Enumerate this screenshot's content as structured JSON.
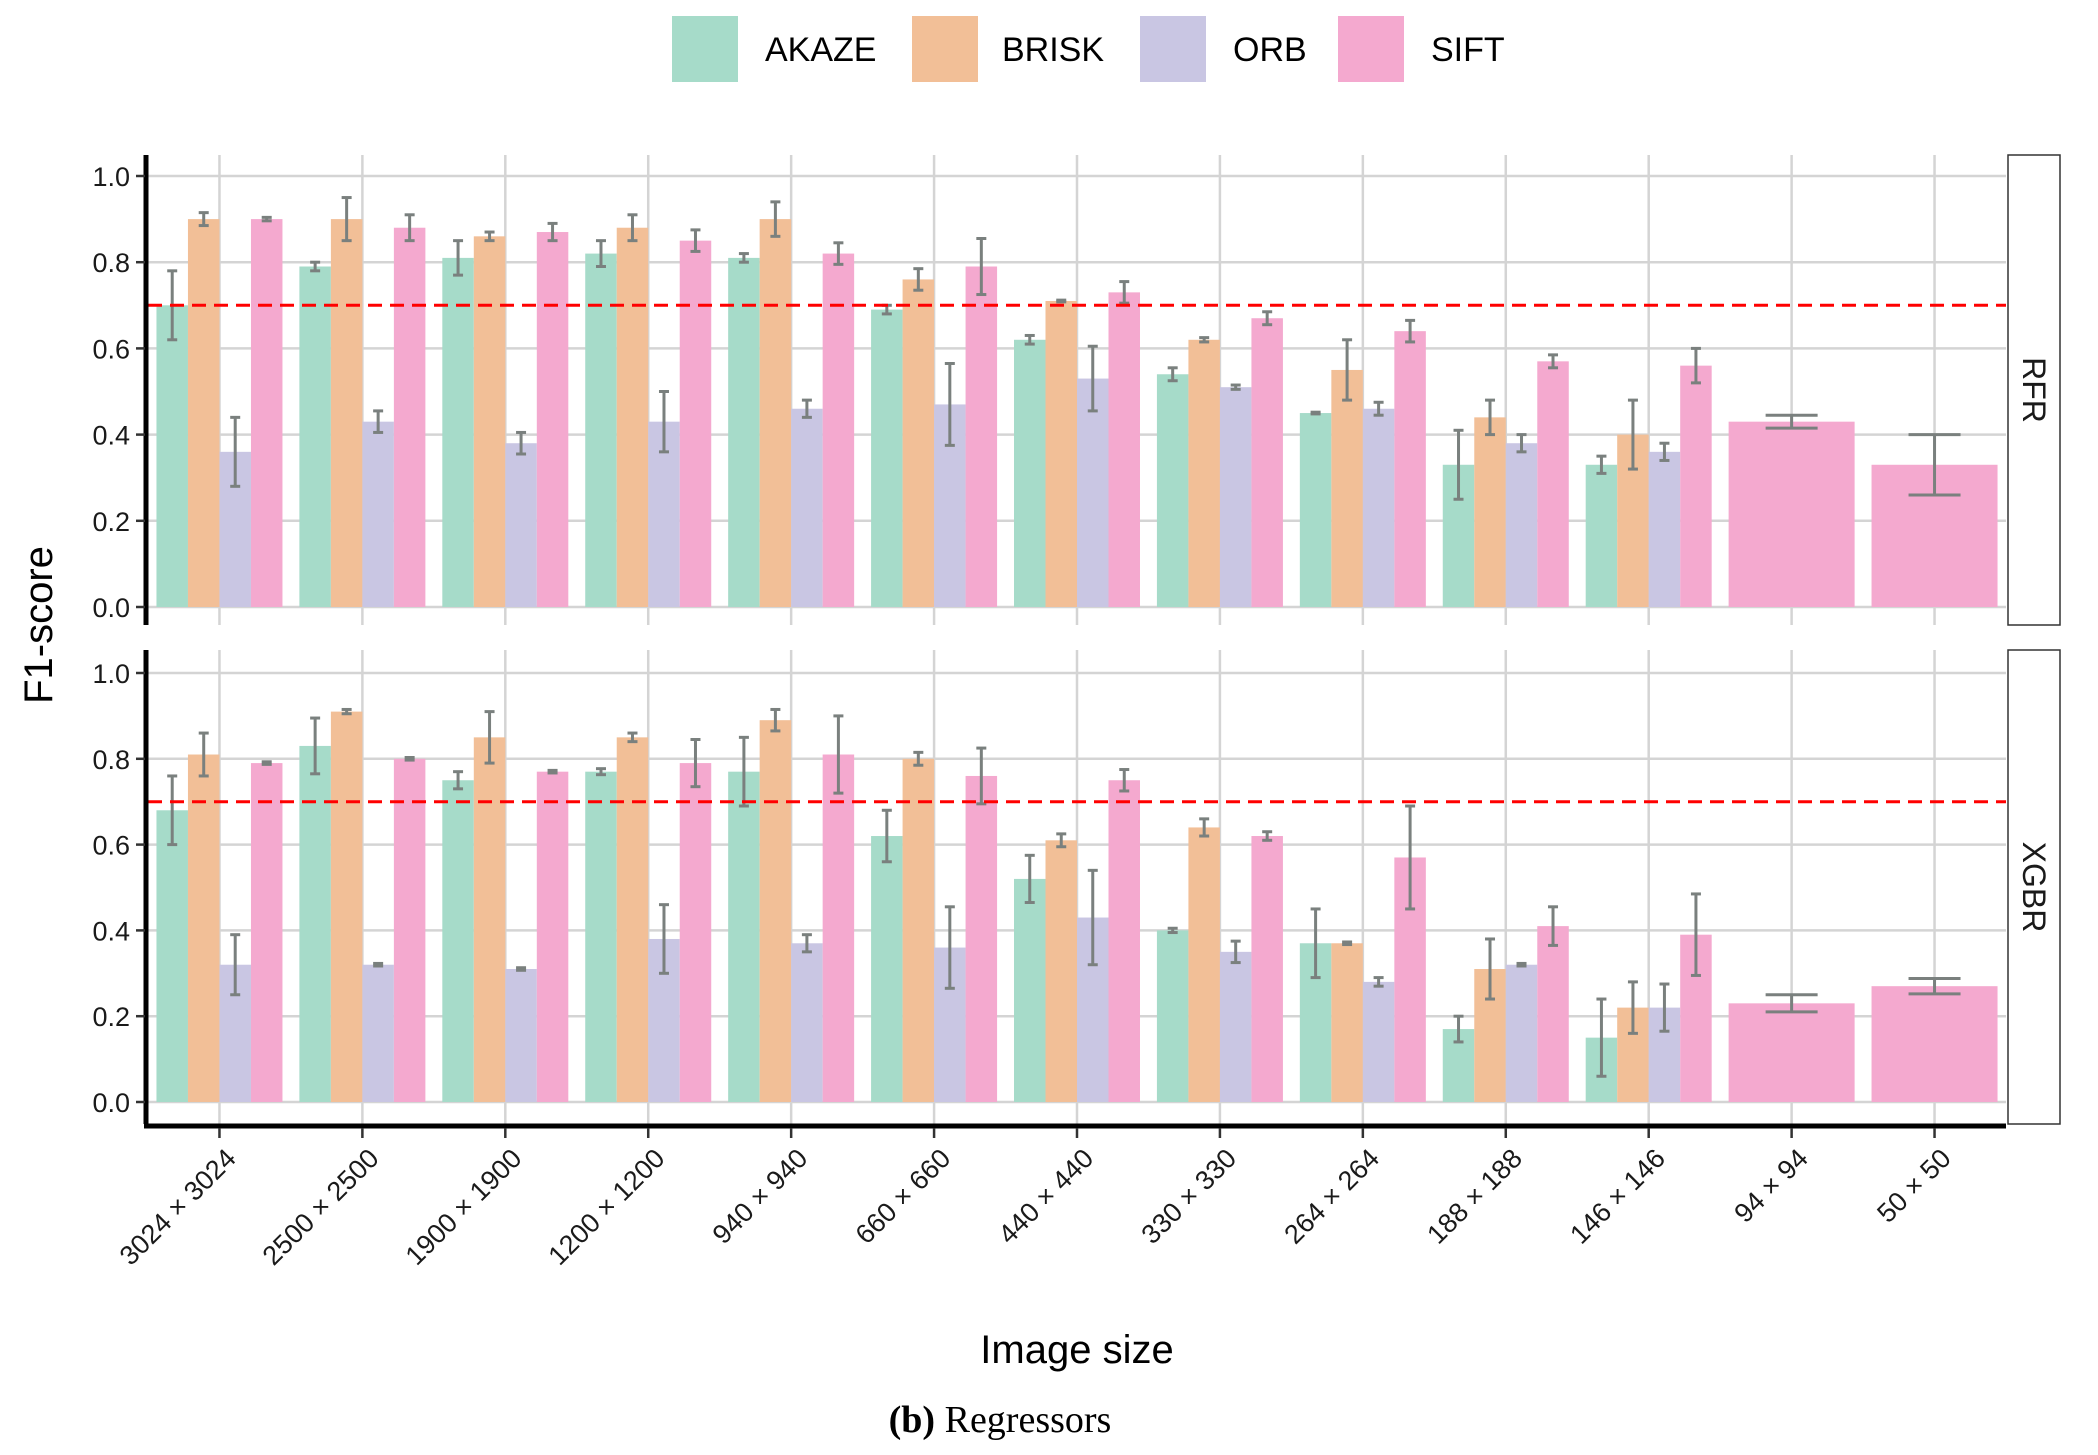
{
  "chart_data": {
    "type": "bar",
    "xlabel": "Image size",
    "ylabel": "F1-score",
    "ylim": [
      0,
      1.0
    ],
    "y_ticks": [
      "0.0",
      "0.2",
      "0.4",
      "0.6",
      "0.8",
      "1.0"
    ],
    "y_tick_values": [
      0,
      0.2,
      0.4,
      0.6,
      0.8,
      1.0
    ],
    "threshold": 0.7,
    "grid": true,
    "legend_position": "top",
    "categories": [
      "3024 × 3024",
      "2500 × 2500",
      "1900 × 1900",
      "1200 × 1200",
      "940 × 940",
      "660 × 660",
      "440 × 440",
      "330 × 330",
      "264 × 264",
      "188 × 188",
      "146 × 146",
      "94 × 94",
      "50 × 50"
    ],
    "colors": {
      "AKAZE": "#a6dbc9",
      "BRISK": "#f2bf97",
      "ORB": "#c9c6e3",
      "SIFT": "#f4a9cf",
      "threshold": "#ff0000",
      "errorbar": "#7a807e"
    },
    "legend": [
      "AKAZE",
      "BRISK",
      "ORB",
      "SIFT"
    ],
    "panels": [
      {
        "label": "RFR",
        "series": [
          {
            "name": "AKAZE",
            "values": [
              0.7,
              0.79,
              0.81,
              0.82,
              0.81,
              0.69,
              0.62,
              0.54,
              0.45,
              0.33,
              0.33,
              null,
              null
            ],
            "errors": [
              0.08,
              0.01,
              0.04,
              0.03,
              0.01,
              0.01,
              0.01,
              0.015,
              0.002,
              0.08,
              0.02,
              null,
              null
            ]
          },
          {
            "name": "BRISK",
            "values": [
              0.9,
              0.9,
              0.86,
              0.88,
              0.9,
              0.76,
              0.71,
              0.62,
              0.55,
              0.44,
              0.4,
              null,
              null
            ],
            "errors": [
              0.015,
              0.05,
              0.01,
              0.03,
              0.04,
              0.025,
              0.002,
              0.005,
              0.07,
              0.04,
              0.08,
              null,
              null
            ]
          },
          {
            "name": "ORB",
            "values": [
              0.36,
              0.43,
              0.38,
              0.43,
              0.46,
              0.47,
              0.53,
              0.51,
              0.46,
              0.38,
              0.36,
              null,
              null
            ],
            "errors": [
              0.08,
              0.025,
              0.025,
              0.07,
              0.02,
              0.095,
              0.075,
              0.005,
              0.015,
              0.02,
              0.02,
              null,
              null
            ]
          },
          {
            "name": "SIFT",
            "values": [
              0.9,
              0.88,
              0.87,
              0.85,
              0.82,
              0.79,
              0.73,
              0.67,
              0.64,
              0.57,
              0.56,
              0.43,
              0.33
            ],
            "errors": [
              0.004,
              0.03,
              0.02,
              0.025,
              0.025,
              0.065,
              0.025,
              0.015,
              0.025,
              0.015,
              0.04,
              0.015,
              0.07
            ]
          }
        ]
      },
      {
        "label": "XGBR",
        "series": [
          {
            "name": "AKAZE",
            "values": [
              0.68,
              0.83,
              0.75,
              0.77,
              0.77,
              0.62,
              0.52,
              0.4,
              0.37,
              0.17,
              0.15,
              null,
              null
            ],
            "errors": [
              0.08,
              0.065,
              0.02,
              0.007,
              0.08,
              0.06,
              0.055,
              0.005,
              0.08,
              0.03,
              0.09,
              null,
              null
            ]
          },
          {
            "name": "BRISK",
            "values": [
              0.81,
              0.91,
              0.85,
              0.85,
              0.89,
              0.8,
              0.61,
              0.64,
              0.37,
              0.31,
              0.22,
              null,
              null
            ],
            "errors": [
              0.05,
              0.005,
              0.06,
              0.01,
              0.025,
              0.015,
              0.015,
              0.02,
              0.003,
              0.07,
              0.06,
              null,
              null
            ]
          },
          {
            "name": "ORB",
            "values": [
              0.32,
              0.32,
              0.31,
              0.38,
              0.37,
              0.36,
              0.43,
              0.35,
              0.28,
              0.32,
              0.22,
              null,
              null
            ],
            "errors": [
              0.07,
              0.003,
              0.003,
              0.08,
              0.02,
              0.095,
              0.11,
              0.025,
              0.01,
              0.003,
              0.055,
              null,
              null
            ]
          },
          {
            "name": "SIFT",
            "values": [
              0.79,
              0.8,
              0.77,
              0.79,
              0.81,
              0.76,
              0.75,
              0.62,
              0.57,
              0.41,
              0.39,
              0.23,
              0.27
            ],
            "errors": [
              0.003,
              0.003,
              0.003,
              0.055,
              0.09,
              0.065,
              0.025,
              0.01,
              0.12,
              0.045,
              0.095,
              0.02,
              0.018
            ]
          }
        ]
      }
    ]
  },
  "caption": {
    "label": "(b)",
    "text": " Regressors"
  }
}
